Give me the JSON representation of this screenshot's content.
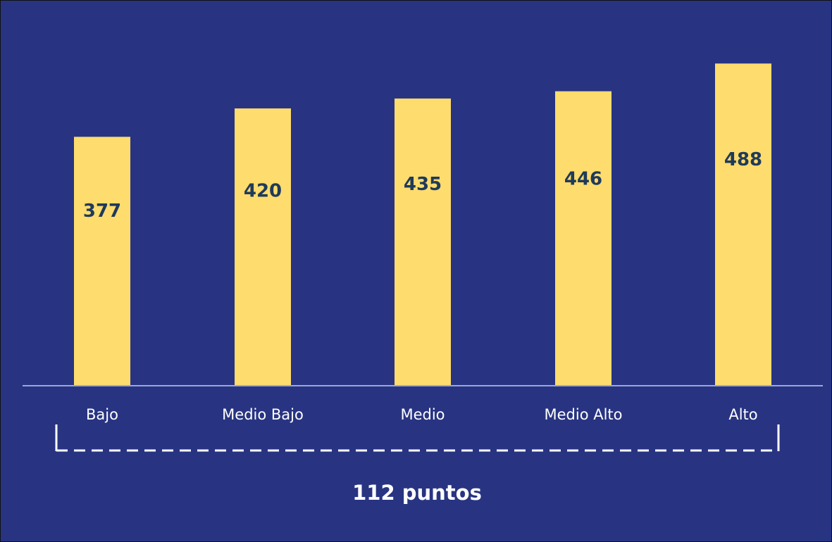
{
  "chart_data": {
    "type": "bar",
    "categories": [
      "Bajo",
      "Medio Bajo",
      "Medio",
      "Medio Alto",
      "Alto"
    ],
    "values": [
      377,
      420,
      435,
      446,
      488
    ],
    "color": "#fedc6d",
    "ylim": [
      0,
      500
    ],
    "annotation": "112 puntos"
  }
}
